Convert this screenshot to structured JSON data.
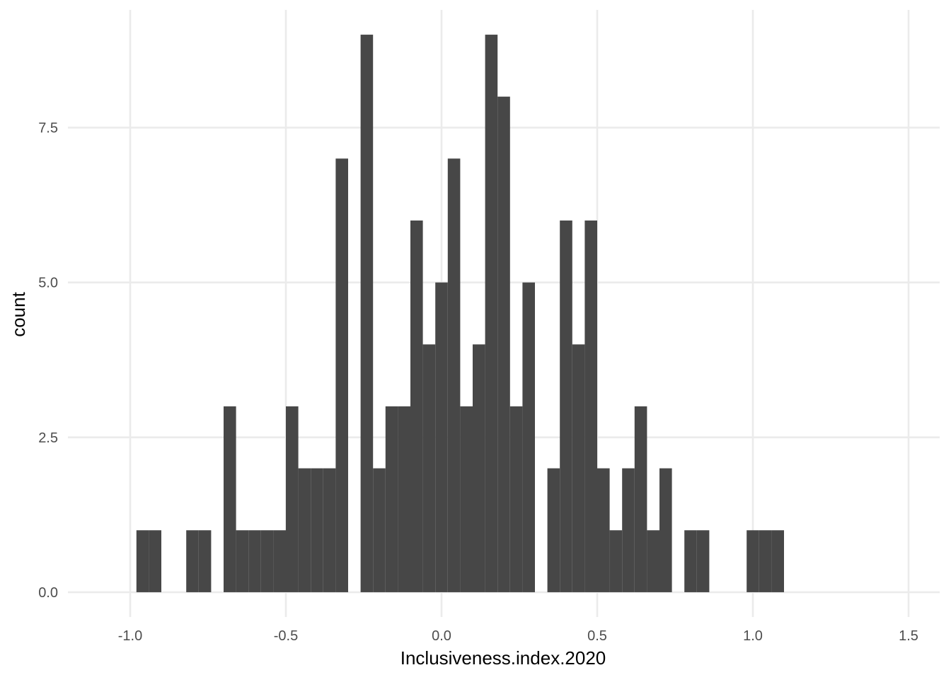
{
  "chart_data": {
    "type": "bar",
    "title": "",
    "xlabel": "Inclusiveness.index.2020",
    "ylabel": "count",
    "xlim": [
      -1.2,
      1.6
    ],
    "ylim": [
      -0.4,
      9.4
    ],
    "x_ticks": [
      -1.0,
      -0.5,
      0.0,
      0.5,
      1.0,
      1.5
    ],
    "x_tick_labels": [
      "-1.0",
      "-0.5",
      "0.0",
      "0.5",
      "1.0",
      "1.5"
    ],
    "y_ticks": [
      0.0,
      2.5,
      5.0,
      7.5
    ],
    "y_tick_labels": [
      "0.0",
      "2.5",
      "5.0",
      "7.5"
    ],
    "grid": true,
    "bar_color": "#474747",
    "grid_color": "#ebebeb",
    "bin_width": 0.04,
    "bins": [
      {
        "x0": -0.98,
        "x1": -0.94,
        "count": 1
      },
      {
        "x0": -0.94,
        "x1": -0.9,
        "count": 1
      },
      {
        "x0": -0.82,
        "x1": -0.78,
        "count": 1
      },
      {
        "x0": -0.78,
        "x1": -0.74,
        "count": 1
      },
      {
        "x0": -0.7,
        "x1": -0.66,
        "count": 3
      },
      {
        "x0": -0.66,
        "x1": -0.62,
        "count": 1
      },
      {
        "x0": -0.62,
        "x1": -0.58,
        "count": 1
      },
      {
        "x0": -0.58,
        "x1": -0.54,
        "count": 1
      },
      {
        "x0": -0.54,
        "x1": -0.5,
        "count": 1
      },
      {
        "x0": -0.5,
        "x1": -0.46,
        "count": 3
      },
      {
        "x0": -0.46,
        "x1": -0.42,
        "count": 2
      },
      {
        "x0": -0.42,
        "x1": -0.38,
        "count": 2
      },
      {
        "x0": -0.38,
        "x1": -0.34,
        "count": 2
      },
      {
        "x0": -0.34,
        "x1": -0.3,
        "count": 7
      },
      {
        "x0": -0.26,
        "x1": -0.22,
        "count": 9
      },
      {
        "x0": -0.22,
        "x1": -0.18,
        "count": 2
      },
      {
        "x0": -0.18,
        "x1": -0.14,
        "count": 3
      },
      {
        "x0": -0.14,
        "x1": -0.1,
        "count": 3
      },
      {
        "x0": -0.1,
        "x1": -0.06,
        "count": 6
      },
      {
        "x0": -0.06,
        "x1": -0.02,
        "count": 4
      },
      {
        "x0": -0.02,
        "x1": 0.02,
        "count": 5
      },
      {
        "x0": 0.02,
        "x1": 0.06,
        "count": 7
      },
      {
        "x0": 0.06,
        "x1": 0.1,
        "count": 3
      },
      {
        "x0": 0.1,
        "x1": 0.14,
        "count": 4
      },
      {
        "x0": 0.14,
        "x1": 0.18,
        "count": 9
      },
      {
        "x0": 0.18,
        "x1": 0.22,
        "count": 8
      },
      {
        "x0": 0.22,
        "x1": 0.26,
        "count": 3
      },
      {
        "x0": 0.26,
        "x1": 0.3,
        "count": 5
      },
      {
        "x0": 0.34,
        "x1": 0.38,
        "count": 2
      },
      {
        "x0": 0.38,
        "x1": 0.42,
        "count": 6
      },
      {
        "x0": 0.42,
        "x1": 0.46,
        "count": 4
      },
      {
        "x0": 0.46,
        "x1": 0.5,
        "count": 6
      },
      {
        "x0": 0.5,
        "x1": 0.54,
        "count": 2
      },
      {
        "x0": 0.54,
        "x1": 0.58,
        "count": 1
      },
      {
        "x0": 0.58,
        "x1": 0.62,
        "count": 2
      },
      {
        "x0": 0.62,
        "x1": 0.66,
        "count": 3
      },
      {
        "x0": 0.66,
        "x1": 0.7,
        "count": 1
      },
      {
        "x0": 0.7,
        "x1": 0.74,
        "count": 2
      },
      {
        "x0": 0.78,
        "x1": 0.82,
        "count": 1
      },
      {
        "x0": 0.82,
        "x1": 0.86,
        "count": 1
      },
      {
        "x0": 0.98,
        "x1": 1.02,
        "count": 1
      },
      {
        "x0": 1.02,
        "x1": 1.06,
        "count": 1
      },
      {
        "x0": 1.06,
        "x1": 1.1,
        "count": 1
      }
    ]
  }
}
